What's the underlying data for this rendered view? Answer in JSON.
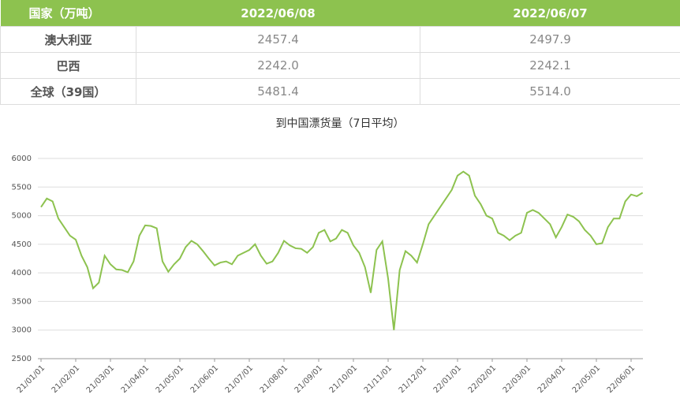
{
  "table": {
    "header": [
      "国家（万吨）",
      "2022/06/08",
      "2022/06/07"
    ],
    "rows": [
      [
        "澳大利亚",
        "2457.4",
        "2497.9"
      ],
      [
        "巴西",
        "2242.0",
        "2242.1"
      ],
      [
        "全球（39国）",
        "5481.4",
        "5514.0"
      ]
    ]
  },
  "chart_data": {
    "type": "line",
    "title": "到中国漂货量（7日平均）",
    "categories": [
      "21/01/01",
      null,
      null,
      null,
      null,
      null,
      "21/02/01",
      null,
      null,
      null,
      null,
      null,
      "21/03/01",
      null,
      null,
      null,
      null,
      null,
      "21/04/01",
      null,
      null,
      null,
      null,
      null,
      "21/05/01",
      null,
      null,
      null,
      null,
      null,
      "21/06/01",
      null,
      null,
      null,
      null,
      null,
      "21/07/01",
      null,
      null,
      null,
      null,
      null,
      "21/08/01",
      null,
      null,
      null,
      null,
      null,
      "21/09/01",
      null,
      null,
      null,
      null,
      null,
      "21/10/01",
      null,
      null,
      null,
      null,
      null,
      "21/11/01",
      null,
      null,
      null,
      null,
      null,
      "21/12/01",
      null,
      null,
      null,
      null,
      null,
      "22/01/01",
      null,
      null,
      null,
      null,
      null,
      "22/02/01",
      null,
      null,
      null,
      null,
      null,
      "22/03/01",
      null,
      null,
      null,
      null,
      null,
      "22/04/01",
      null,
      null,
      null,
      null,
      null,
      "22/05/01",
      null,
      null,
      null,
      null,
      null,
      "22/06/01",
      null,
      null
    ],
    "series": [
      {
        "color": "#8dc24f",
        "values": [
          5150,
          5300,
          5250,
          4950,
          4800,
          4650,
          4580,
          4300,
          4100,
          3730,
          3830,
          4300,
          4150,
          4060,
          4050,
          4010,
          4200,
          4650,
          4830,
          4820,
          4780,
          4200,
          4020,
          4150,
          4250,
          4450,
          4560,
          4500,
          4380,
          4250,
          4130,
          4180,
          4200,
          4150,
          4300,
          4350,
          4400,
          4500,
          4300,
          4160,
          4200,
          4350,
          4560,
          4480,
          4430,
          4420,
          4350,
          4450,
          4700,
          4750,
          4550,
          4600,
          4750,
          4700,
          4480,
          4350,
          4100,
          3650,
          4400,
          4550,
          3900,
          3000,
          4050,
          4380,
          4300,
          4180,
          4500,
          4850,
          5000,
          5150,
          5300,
          5450,
          5700,
          5770,
          5700,
          5350,
          5200,
          5000,
          4950,
          4700,
          4650,
          4570,
          4650,
          4700,
          5050,
          5100,
          5050,
          4950,
          4850,
          4620,
          4800,
          5020,
          4980,
          4900,
          4750,
          4650,
          4500,
          4520,
          4800,
          4950,
          4950,
          5250,
          5370,
          5340,
          5400
        ]
      }
    ],
    "ylim": [
      2500,
      6000
    ],
    "yticks": [
      2500,
      3000,
      3500,
      4000,
      4500,
      5000,
      5500,
      6000
    ],
    "grid": true
  }
}
